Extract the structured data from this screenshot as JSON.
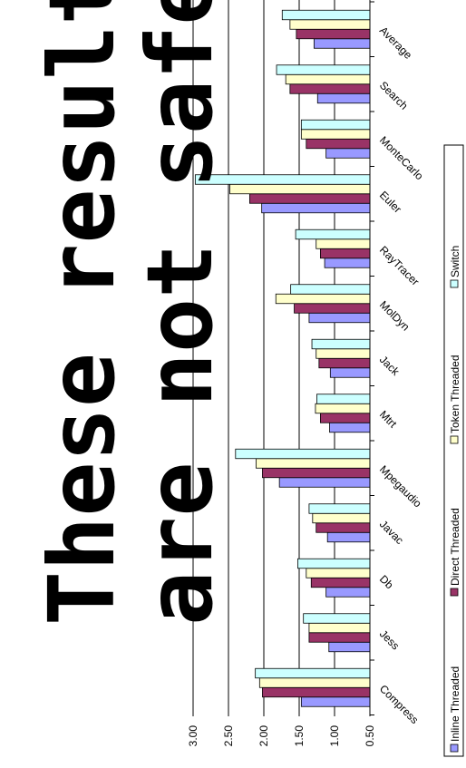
{
  "chart_data": {
    "type": "bar",
    "orientation": "rotated-90",
    "categories": [
      "Compress",
      "Jess",
      "Db",
      "Javac",
      "Mpegaudio",
      "Mtrt",
      "Jack",
      "MolDyn",
      "RayTracer",
      "Euler",
      "MonteCarlo",
      "Search",
      "Average"
    ],
    "series": [
      {
        "name": "Inline Threaded",
        "color": "#9999ff",
        "values": [
          1.47,
          1.08,
          1.12,
          1.1,
          1.78,
          1.07,
          1.06,
          1.36,
          1.14,
          2.03,
          1.12,
          1.24,
          1.29
        ]
      },
      {
        "name": "Direct Threaded",
        "color": "#993366",
        "values": [
          2.02,
          1.36,
          1.33,
          1.26,
          2.02,
          1.2,
          1.22,
          1.57,
          1.2,
          2.2,
          1.4,
          1.63,
          1.54
        ]
      },
      {
        "name": "Token Threaded",
        "color": "#ffffcc",
        "values": [
          2.06,
          1.36,
          1.4,
          1.31,
          2.11,
          1.27,
          1.26,
          1.83,
          1.26,
          2.48,
          1.47,
          1.69,
          1.63
        ]
      },
      {
        "name": "Switch",
        "color": "#ccffff",
        "values": [
          2.12,
          1.44,
          1.52,
          1.36,
          2.4,
          1.25,
          1.32,
          1.62,
          1.55,
          2.97,
          1.47,
          1.82,
          1.74
        ]
      }
    ],
    "ylim": [
      0.5,
      3.0
    ],
    "yticks": [
      "3.00",
      "2.50",
      "2.00",
      "1.50",
      "1.00",
      "0.50"
    ],
    "grid": true,
    "legend_position": "right"
  },
  "overlay": {
    "line1": "These results",
    "line2": "are not safe!"
  }
}
